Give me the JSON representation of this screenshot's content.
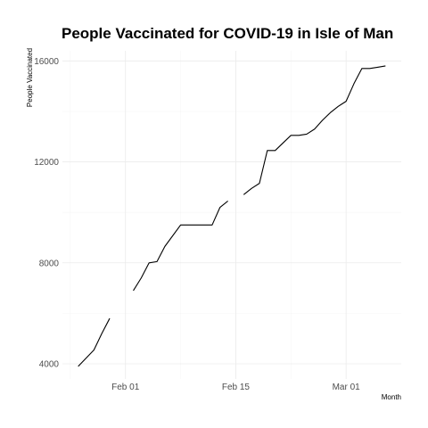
{
  "chart_data": {
    "type": "line",
    "title": "People Vaccinated for COVID-19 in Isle of Man",
    "xlabel": "Month",
    "ylabel": "People Vaccinated",
    "x_tick_labels": [
      "Feb 01",
      "Feb 15",
      "Mar 01"
    ],
    "x_ticks": [
      "2021-02-01",
      "2021-02-15",
      "2021-03-01"
    ],
    "y_ticks": [
      4000,
      8000,
      12000,
      16000
    ],
    "xlim": [
      "2021-01-24",
      "2021-03-08"
    ],
    "ylim": [
      3400,
      16400
    ],
    "grid": true,
    "line_color": "#000000",
    "segments": [
      [
        {
          "x": "2021-01-26",
          "y": 3900
        },
        {
          "x": "2021-01-28",
          "y": 4550
        },
        {
          "x": "2021-01-29",
          "y": 5200
        },
        {
          "x": "2021-01-30",
          "y": 5800
        }
      ],
      [
        {
          "x": "2021-02-02",
          "y": 6900
        },
        {
          "x": "2021-02-03",
          "y": 7400
        },
        {
          "x": "2021-02-04",
          "y": 8000
        },
        {
          "x": "2021-02-05",
          "y": 8050
        },
        {
          "x": "2021-02-06",
          "y": 8650
        },
        {
          "x": "2021-02-08",
          "y": 9500
        },
        {
          "x": "2021-02-10",
          "y": 9500
        },
        {
          "x": "2021-02-12",
          "y": 9500
        },
        {
          "x": "2021-02-13",
          "y": 10200
        },
        {
          "x": "2021-02-14",
          "y": 10450
        }
      ],
      [
        {
          "x": "2021-02-16",
          "y": 10700
        },
        {
          "x": "2021-02-17",
          "y": 10950
        },
        {
          "x": "2021-02-18",
          "y": 11150
        },
        {
          "x": "2021-02-19",
          "y": 12450
        },
        {
          "x": "2021-02-20",
          "y": 12450
        },
        {
          "x": "2021-02-22",
          "y": 13050
        },
        {
          "x": "2021-02-23",
          "y": 13050
        },
        {
          "x": "2021-02-24",
          "y": 13100
        },
        {
          "x": "2021-02-25",
          "y": 13300
        },
        {
          "x": "2021-02-26",
          "y": 13650
        },
        {
          "x": "2021-02-27",
          "y": 13950
        },
        {
          "x": "2021-02-28",
          "y": 14200
        },
        {
          "x": "2021-03-01",
          "y": 14400
        },
        {
          "x": "2021-03-02",
          "y": 15100
        },
        {
          "x": "2021-03-03",
          "y": 15700
        },
        {
          "x": "2021-03-04",
          "y": 15700
        },
        {
          "x": "2021-03-05",
          "y": 15750
        },
        {
          "x": "2021-03-06",
          "y": 15800
        }
      ]
    ]
  }
}
